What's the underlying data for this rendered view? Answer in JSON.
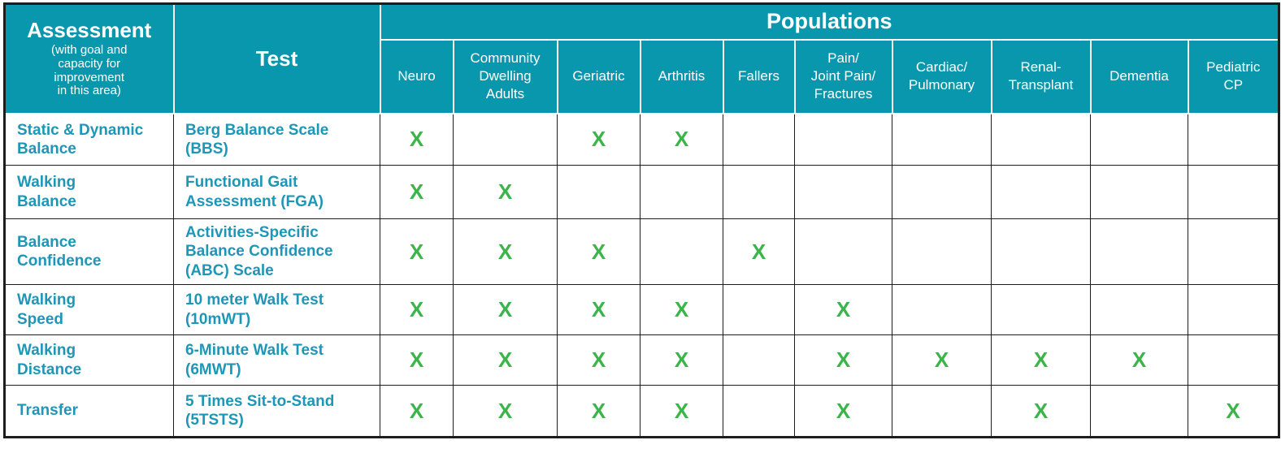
{
  "table": {
    "assessment_header": {
      "title": "Assessment",
      "subtitle": "(with goal and\ncapacity for\nimprovement\nin this area)"
    },
    "test_header": "Test",
    "populations_header": "Populations",
    "population_columns": [
      "Neuro",
      "Community\nDwelling\nAdults",
      "Geriatric",
      "Arthritis",
      "Fallers",
      "Pain/\nJoint Pain/\nFractures",
      "Cardiac/\nPulmonary",
      "Renal-\nTransplant",
      "Dementia",
      "Pediatric\nCP"
    ],
    "mark_symbol": "X",
    "rows": [
      {
        "assessment": "Static & Dynamic\nBalance",
        "test": "Berg Balance Scale\n(BBS)",
        "marks": [
          true,
          false,
          true,
          true,
          false,
          false,
          false,
          false,
          false,
          false
        ]
      },
      {
        "assessment": "Walking\nBalance",
        "test": "Functional Gait\nAssessment (FGA)",
        "marks": [
          true,
          true,
          false,
          false,
          false,
          false,
          false,
          false,
          false,
          false
        ]
      },
      {
        "assessment": "Balance\nConfidence",
        "test": "Activities-Specific\nBalance Confidence\n(ABC) Scale",
        "marks": [
          true,
          true,
          true,
          false,
          true,
          false,
          false,
          false,
          false,
          false
        ]
      },
      {
        "assessment": "Walking\nSpeed",
        "test": "10 meter Walk Test\n(10mWT)",
        "marks": [
          true,
          true,
          true,
          true,
          false,
          true,
          false,
          false,
          false,
          false
        ]
      },
      {
        "assessment": "Walking\nDistance",
        "test": "6-Minute Walk Test\n(6MWT)",
        "marks": [
          true,
          true,
          true,
          true,
          false,
          true,
          true,
          true,
          true,
          false
        ]
      },
      {
        "assessment": "Transfer",
        "test": "5 Times Sit-to-Stand\n(5TSTS)",
        "marks": [
          true,
          true,
          true,
          true,
          false,
          true,
          false,
          true,
          false,
          true
        ]
      }
    ]
  },
  "colors": {
    "header_bg": "#0997AD",
    "header_text": "#FFFFFF",
    "body_label_text": "#1E96B8",
    "mark_green": "#3BB54A",
    "grid_dark": "#1D1D1D"
  }
}
